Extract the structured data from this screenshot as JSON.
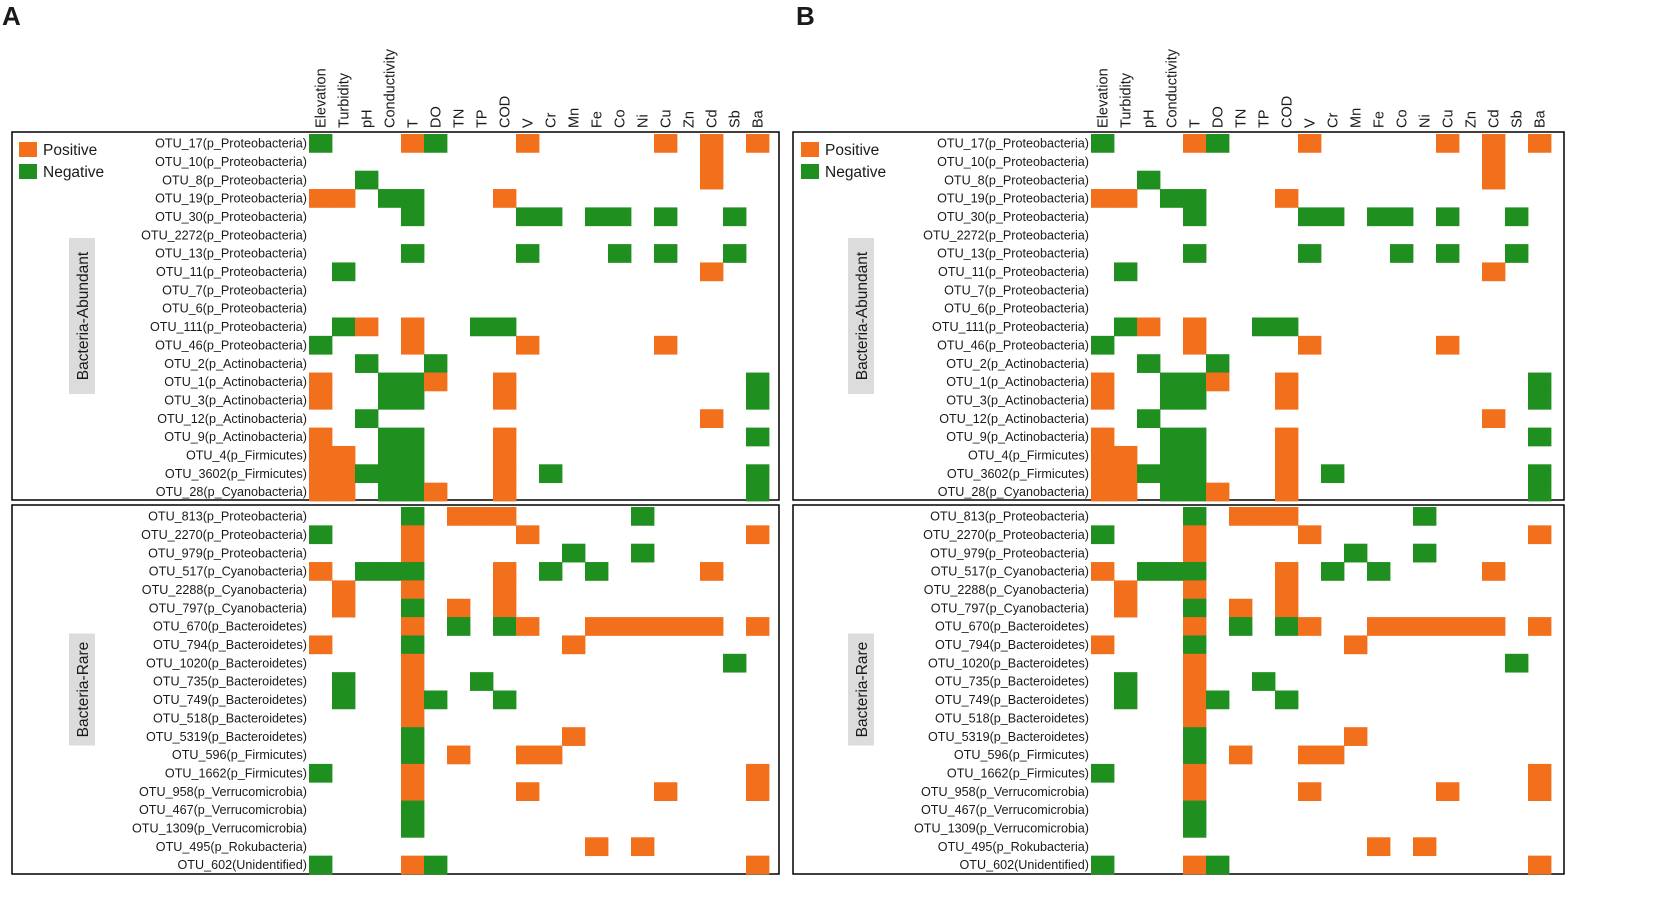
{
  "chart_data": {
    "type": "heatmap",
    "colors": {
      "positive": "#f26f1b",
      "negative": "#1f8f1f",
      "border": "#000000",
      "group_label_bg": "#dcdcdc"
    },
    "legend": {
      "positive": "Positive",
      "negative": "Negative"
    },
    "value_encoding": {
      "1": "Positive",
      "-1": "Negative",
      "0": "none"
    },
    "columns": [
      "Elevation",
      "Turbidity",
      "pH",
      "Conductivity",
      "T",
      "DO",
      "TN",
      "TP",
      "COD",
      "V",
      "Cr",
      "Mn",
      "Fe",
      "Co",
      "Ni",
      "Cu",
      "Zn",
      "Cd",
      "Sb",
      "Ba"
    ],
    "groups": [
      {
        "name": "Bacteria-Abundant",
        "rows": [
          "OTU_17(p_Proteobacteria)",
          "OTU_10(p_Proteobacteria)",
          "OTU_8(p_Proteobacteria)",
          "OTU_19(p_Proteobacteria)",
          "OTU_30(p_Proteobacteria)",
          "OTU_2272(p_Proteobacteria)",
          "OTU_13(p_Proteobacteria)",
          "OTU_11(p_Proteobacteria)",
          "OTU_7(p_Proteobacteria)",
          "OTU_6(p_Proteobacteria)",
          "OTU_111(p_Proteobacteria)",
          "OTU_46(p_Proteobacteria)",
          "OTU_2(p_Actinobacteria)",
          "OTU_1(p_Actinobacteria)",
          "OTU_3(p_Actinobacteria)",
          "OTU_12(p_Actinobacteria)",
          "OTU_9(p_Actinobacteria)",
          "OTU_4(p_Firmicutes)",
          "OTU_3602(p_Firmicutes)",
          "OTU_28(p_Cyanobacteria)"
        ],
        "matrix": [
          [
            -1,
            0,
            0,
            0,
            1,
            -1,
            0,
            0,
            0,
            1,
            0,
            0,
            0,
            0,
            0,
            1,
            0,
            1,
            0,
            1
          ],
          [
            0,
            0,
            0,
            0,
            0,
            0,
            0,
            0,
            0,
            0,
            0,
            0,
            0,
            0,
            0,
            0,
            0,
            1,
            0,
            0
          ],
          [
            0,
            0,
            -1,
            0,
            0,
            0,
            0,
            0,
            0,
            0,
            0,
            0,
            0,
            0,
            0,
            0,
            0,
            1,
            0,
            0
          ],
          [
            1,
            1,
            0,
            -1,
            -1,
            0,
            0,
            0,
            1,
            0,
            0,
            0,
            0,
            0,
            0,
            0,
            0,
            0,
            0,
            0
          ],
          [
            0,
            0,
            0,
            0,
            -1,
            0,
            0,
            0,
            0,
            -1,
            -1,
            0,
            -1,
            -1,
            0,
            -1,
            0,
            0,
            -1,
            0
          ],
          [
            0,
            0,
            0,
            0,
            0,
            0,
            0,
            0,
            0,
            0,
            0,
            0,
            0,
            0,
            0,
            0,
            0,
            0,
            0,
            0
          ],
          [
            0,
            0,
            0,
            0,
            -1,
            0,
            0,
            0,
            0,
            -1,
            0,
            0,
            0,
            -1,
            0,
            -1,
            0,
            0,
            -1,
            0
          ],
          [
            0,
            -1,
            0,
            0,
            0,
            0,
            0,
            0,
            0,
            0,
            0,
            0,
            0,
            0,
            0,
            0,
            0,
            1,
            0,
            0
          ],
          [
            0,
            0,
            0,
            0,
            0,
            0,
            0,
            0,
            0,
            0,
            0,
            0,
            0,
            0,
            0,
            0,
            0,
            0,
            0,
            0
          ],
          [
            0,
            0,
            0,
            0,
            0,
            0,
            0,
            0,
            0,
            0,
            0,
            0,
            0,
            0,
            0,
            0,
            0,
            0,
            0,
            0
          ],
          [
            0,
            -1,
            1,
            0,
            1,
            0,
            0,
            -1,
            -1,
            0,
            0,
            0,
            0,
            0,
            0,
            0,
            0,
            0,
            0,
            0
          ],
          [
            -1,
            0,
            0,
            0,
            1,
            0,
            0,
            0,
            0,
            1,
            0,
            0,
            0,
            0,
            0,
            1,
            0,
            0,
            0,
            0
          ],
          [
            0,
            0,
            -1,
            0,
            0,
            -1,
            0,
            0,
            0,
            0,
            0,
            0,
            0,
            0,
            0,
            0,
            0,
            0,
            0,
            0
          ],
          [
            1,
            0,
            0,
            -1,
            -1,
            1,
            0,
            0,
            1,
            0,
            0,
            0,
            0,
            0,
            0,
            0,
            0,
            0,
            0,
            -1
          ],
          [
            1,
            0,
            0,
            -1,
            -1,
            0,
            0,
            0,
            1,
            0,
            0,
            0,
            0,
            0,
            0,
            0,
            0,
            0,
            0,
            -1
          ],
          [
            0,
            0,
            -1,
            0,
            0,
            0,
            0,
            0,
            0,
            0,
            0,
            0,
            0,
            0,
            0,
            0,
            0,
            1,
            0,
            0
          ],
          [
            1,
            0,
            0,
            -1,
            -1,
            0,
            0,
            0,
            1,
            0,
            0,
            0,
            0,
            0,
            0,
            0,
            0,
            0,
            0,
            -1
          ],
          [
            1,
            1,
            0,
            -1,
            -1,
            0,
            0,
            0,
            1,
            0,
            0,
            0,
            0,
            0,
            0,
            0,
            0,
            0,
            0,
            0
          ],
          [
            1,
            1,
            -1,
            -1,
            -1,
            0,
            0,
            0,
            1,
            0,
            -1,
            0,
            0,
            0,
            0,
            0,
            0,
            0,
            0,
            -1
          ],
          [
            1,
            1,
            0,
            -1,
            -1,
            1,
            0,
            0,
            1,
            0,
            0,
            0,
            0,
            0,
            0,
            0,
            0,
            0,
            0,
            -1
          ]
        ]
      },
      {
        "name": "Bacteria-Rare",
        "rows": [
          "OTU_813(p_Proteobacteria)",
          "OTU_2270(p_Proteobacteria)",
          "OTU_979(p_Proteobacteria)",
          "OTU_517(p_Cyanobacteria)",
          "OTU_2288(p_Cyanobacteria)",
          "OTU_797(p_Cyanobacteria)",
          "OTU_670(p_Bacteroidetes)",
          "OTU_794(p_Bacteroidetes)",
          "OTU_1020(p_Bacteroidetes)",
          "OTU_735(p_Bacteroidetes)",
          "OTU_749(p_Bacteroidetes)",
          "OTU_518(p_Bacteroidetes)",
          "OTU_5319(p_Bacteroidetes)",
          "OTU_596(p_Firmicutes)",
          "OTU_1662(p_Firmicutes)",
          "OTU_958(p_Verrucomicrobia)",
          "OTU_467(p_Verrucomicrobia)",
          "OTU_1309(p_Verrucomicrobia)",
          "OTU_495(p_Rokubacteria)",
          "OTU_602(Unidentified)"
        ],
        "matrix": [
          [
            0,
            0,
            0,
            0,
            -1,
            0,
            1,
            1,
            1,
            0,
            0,
            0,
            0,
            0,
            -1,
            0,
            0,
            0,
            0,
            0
          ],
          [
            -1,
            0,
            0,
            0,
            1,
            0,
            0,
            0,
            0,
            1,
            0,
            0,
            0,
            0,
            0,
            0,
            0,
            0,
            0,
            1
          ],
          [
            0,
            0,
            0,
            0,
            1,
            0,
            0,
            0,
            0,
            0,
            0,
            -1,
            0,
            0,
            -1,
            0,
            0,
            0,
            0,
            0
          ],
          [
            1,
            0,
            -1,
            -1,
            -1,
            0,
            0,
            0,
            1,
            0,
            -1,
            0,
            -1,
            0,
            0,
            0,
            0,
            1,
            0,
            0
          ],
          [
            0,
            1,
            0,
            0,
            1,
            0,
            0,
            0,
            1,
            0,
            0,
            0,
            0,
            0,
            0,
            0,
            0,
            0,
            0,
            0
          ],
          [
            0,
            1,
            0,
            0,
            -1,
            0,
            1,
            0,
            1,
            0,
            0,
            0,
            0,
            0,
            0,
            0,
            0,
            0,
            0,
            0
          ],
          [
            0,
            0,
            0,
            0,
            1,
            0,
            -1,
            0,
            -1,
            1,
            0,
            0,
            1,
            1,
            1,
            1,
            1,
            1,
            0,
            1
          ],
          [
            1,
            0,
            0,
            0,
            -1,
            0,
            0,
            0,
            0,
            0,
            0,
            1,
            0,
            0,
            0,
            0,
            0,
            0,
            0,
            0
          ],
          [
            0,
            0,
            0,
            0,
            1,
            0,
            0,
            0,
            0,
            0,
            0,
            0,
            0,
            0,
            0,
            0,
            0,
            0,
            -1,
            0
          ],
          [
            0,
            -1,
            0,
            0,
            1,
            0,
            0,
            -1,
            0,
            0,
            0,
            0,
            0,
            0,
            0,
            0,
            0,
            0,
            0,
            0
          ],
          [
            0,
            -1,
            0,
            0,
            1,
            -1,
            0,
            0,
            -1,
            0,
            0,
            0,
            0,
            0,
            0,
            0,
            0,
            0,
            0,
            0
          ],
          [
            0,
            0,
            0,
            0,
            1,
            0,
            0,
            0,
            0,
            0,
            0,
            0,
            0,
            0,
            0,
            0,
            0,
            0,
            0,
            0
          ],
          [
            0,
            0,
            0,
            0,
            -1,
            0,
            0,
            0,
            0,
            0,
            0,
            1,
            0,
            0,
            0,
            0,
            0,
            0,
            0,
            0
          ],
          [
            0,
            0,
            0,
            0,
            -1,
            0,
            1,
            0,
            0,
            1,
            1,
            0,
            0,
            0,
            0,
            0,
            0,
            0,
            0,
            0
          ],
          [
            -1,
            0,
            0,
            0,
            1,
            0,
            0,
            0,
            0,
            0,
            0,
            0,
            0,
            0,
            0,
            0,
            0,
            0,
            0,
            1
          ],
          [
            0,
            0,
            0,
            0,
            1,
            0,
            0,
            0,
            0,
            1,
            0,
            0,
            0,
            0,
            0,
            1,
            0,
            0,
            0,
            1
          ],
          [
            0,
            0,
            0,
            0,
            -1,
            0,
            0,
            0,
            0,
            0,
            0,
            0,
            0,
            0,
            0,
            0,
            0,
            0,
            0,
            0
          ],
          [
            0,
            0,
            0,
            0,
            -1,
            0,
            0,
            0,
            0,
            0,
            0,
            0,
            0,
            0,
            0,
            0,
            0,
            0,
            0,
            0
          ],
          [
            0,
            0,
            0,
            0,
            0,
            0,
            0,
            0,
            0,
            0,
            0,
            0,
            1,
            0,
            1,
            0,
            0,
            0,
            0,
            0
          ],
          [
            -1,
            0,
            0,
            0,
            1,
            -1,
            0,
            0,
            0,
            0,
            0,
            0,
            0,
            0,
            0,
            0,
            0,
            0,
            0,
            1
          ]
        ]
      }
    ],
    "panels": [
      "A",
      "B"
    ]
  }
}
